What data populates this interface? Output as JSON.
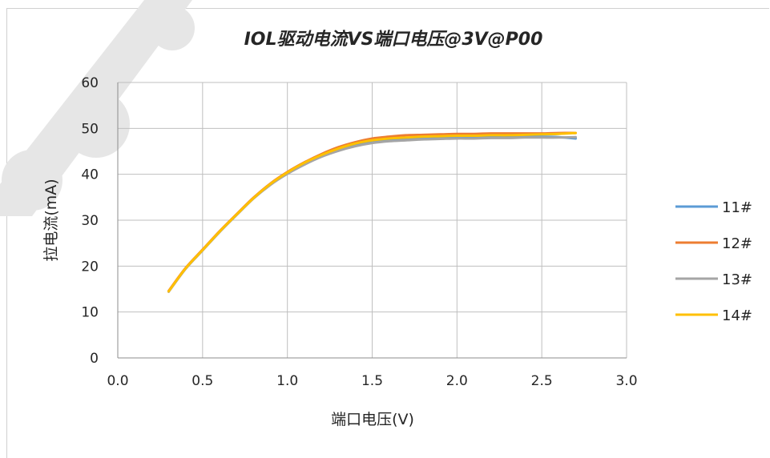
{
  "chart_data": {
    "type": "line",
    "title": "IOL驱动电流VS端口电压@3V@P00",
    "xlabel": "端口电压(V)",
    "ylabel": "拉电流(mA)",
    "xlim": [
      0.0,
      3.0
    ],
    "ylim": [
      0,
      60
    ],
    "x_ticks": [
      "0.0",
      "0.5",
      "1.0",
      "1.5",
      "2.0",
      "2.5",
      "3.0"
    ],
    "y_ticks": [
      "0",
      "10",
      "20",
      "30",
      "40",
      "50",
      "60"
    ],
    "grid": true,
    "legend_position": "right",
    "series": [
      {
        "name": "11#",
        "color": "#5B9BD5",
        "x": [
          0.3,
          0.4,
          0.5,
          0.6,
          0.7,
          0.8,
          0.9,
          1.0,
          1.1,
          1.2,
          1.3,
          1.4,
          1.5,
          1.6,
          1.7,
          1.8,
          1.9,
          2.0,
          2.1,
          2.2,
          2.3,
          2.4,
          2.5,
          2.6,
          2.7
        ],
        "y": [
          14.5,
          19.5,
          23.5,
          27.5,
          31.2,
          34.8,
          37.8,
          40.2,
          42.2,
          43.9,
          45.3,
          46.3,
          47.0,
          47.4,
          47.6,
          47.8,
          47.9,
          48.0,
          48.1,
          48.1,
          48.1,
          48.2,
          48.2,
          48.1,
          47.8
        ]
      },
      {
        "name": "12#",
        "color": "#ED7D31",
        "x": [
          0.3,
          0.4,
          0.5,
          0.6,
          0.7,
          0.8,
          0.9,
          1.0,
          1.1,
          1.2,
          1.3,
          1.4,
          1.5,
          1.6,
          1.7,
          1.8,
          1.9,
          2.0,
          2.1,
          2.2,
          2.3,
          2.4,
          2.5,
          2.6,
          2.7
        ],
        "y": [
          14.6,
          19.6,
          23.6,
          27.6,
          31.3,
          34.9,
          38.0,
          40.5,
          42.6,
          44.4,
          45.9,
          47.0,
          47.8,
          48.2,
          48.5,
          48.6,
          48.7,
          48.8,
          48.8,
          48.9,
          48.9,
          48.9,
          48.9,
          49.0,
          49.0
        ]
      },
      {
        "name": "13#",
        "color": "#A5A5A5",
        "x": [
          0.3,
          0.4,
          0.5,
          0.6,
          0.7,
          0.8,
          0.9,
          1.0,
          1.1,
          1.2,
          1.3,
          1.4,
          1.5,
          1.6,
          1.7,
          1.8,
          1.9,
          2.0,
          2.1,
          2.2,
          2.3,
          2.4,
          2.5,
          2.6,
          2.7
        ],
        "y": [
          14.4,
          19.4,
          23.4,
          27.4,
          31.1,
          34.7,
          37.7,
          40.1,
          42.1,
          43.8,
          45.1,
          46.1,
          46.8,
          47.2,
          47.4,
          47.6,
          47.7,
          47.8,
          47.8,
          47.9,
          47.9,
          48.0,
          48.0,
          48.0,
          48.1
        ]
      },
      {
        "name": "14#",
        "color": "#FFC000",
        "x": [
          0.3,
          0.4,
          0.5,
          0.6,
          0.7,
          0.8,
          0.9,
          1.0,
          1.1,
          1.2,
          1.3,
          1.4,
          1.5,
          1.6,
          1.7,
          1.8,
          1.9,
          2.0,
          2.1,
          2.2,
          2.3,
          2.4,
          2.5,
          2.6,
          2.7
        ],
        "y": [
          14.5,
          19.5,
          23.5,
          27.5,
          31.2,
          34.8,
          37.9,
          40.4,
          42.5,
          44.2,
          45.6,
          46.7,
          47.4,
          47.8,
          48.0,
          48.2,
          48.3,
          48.4,
          48.4,
          48.5,
          48.5,
          48.6,
          48.7,
          48.8,
          49.0
        ]
      }
    ]
  }
}
